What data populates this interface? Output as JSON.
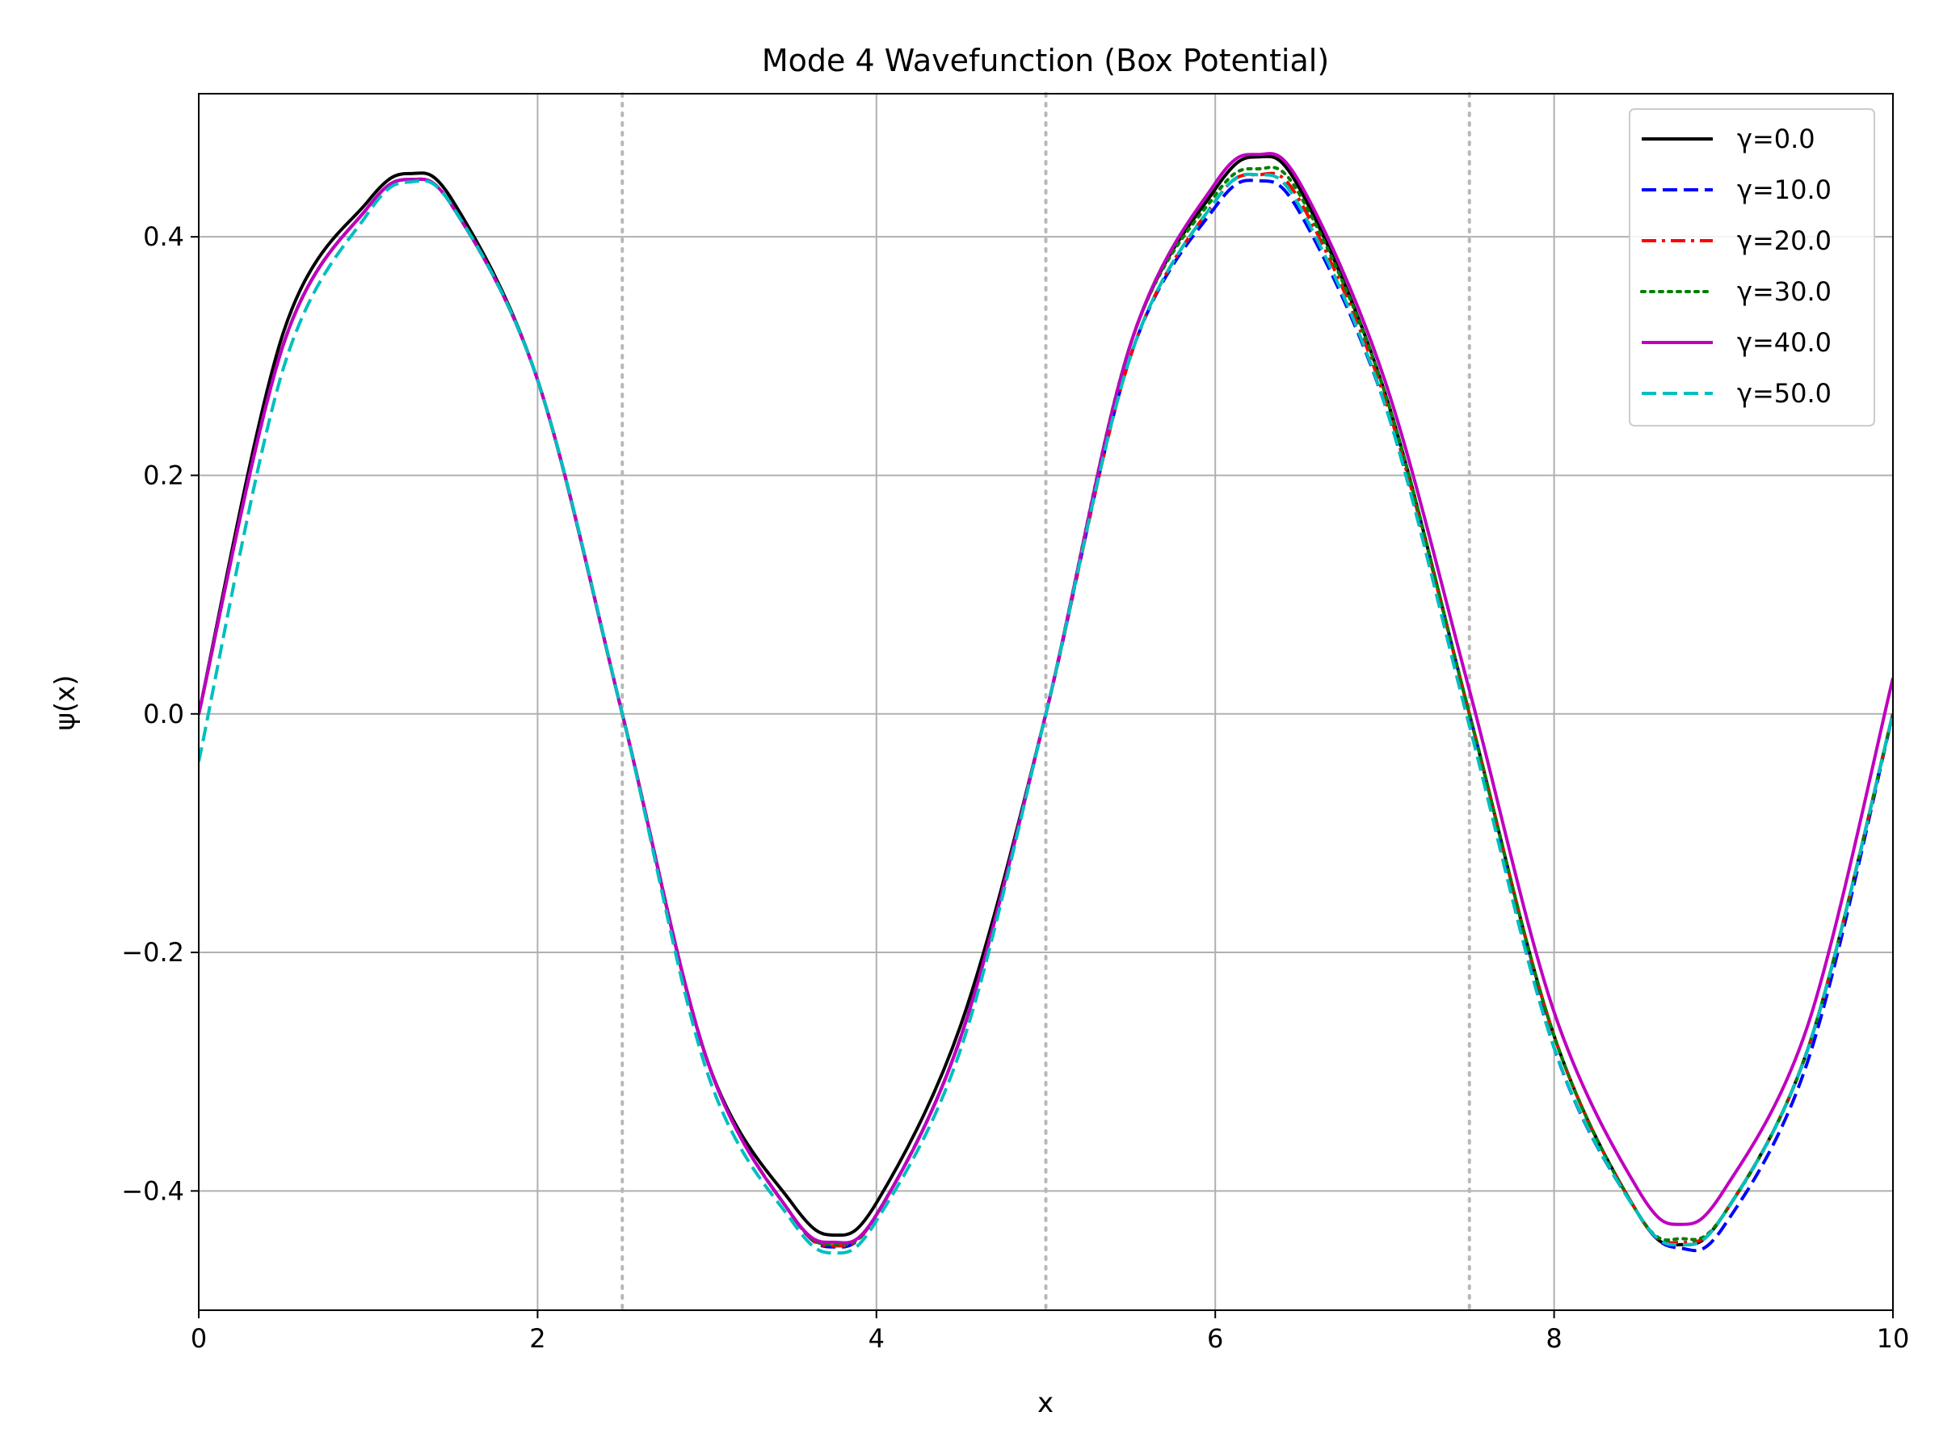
{
  "chart_data": {
    "type": "line",
    "title": "Mode 4 Wavefunction (Box Potential)",
    "xlabel": "x",
    "ylabel": "ψ(x)",
    "xlim": [
      0,
      10
    ],
    "ylim": [
      -0.5,
      0.52
    ],
    "xticks": [
      0,
      2,
      4,
      6,
      8,
      10
    ],
    "xtick_labels": [
      "0",
      "2",
      "4",
      "6",
      "8",
      "10"
    ],
    "yticks": [
      -0.4,
      -0.2,
      0.0,
      0.2,
      0.4
    ],
    "ytick_labels": [
      "−0.4",
      "−0.2",
      "0.0",
      "0.2",
      "0.4"
    ],
    "grid": true,
    "vertical_markers": [
      2.5,
      5.0,
      7.5
    ],
    "legend_position": "top-right",
    "series": [
      {
        "name": "γ=0.0",
        "color": "#000000",
        "style": "solid",
        "x": [
          0,
          0.5,
          1.0,
          1.25,
          1.5,
          2.0,
          2.5,
          3.0,
          3.5,
          3.75,
          4.0,
          4.5,
          5.0,
          5.5,
          6.0,
          6.25,
          6.5,
          7.0,
          7.5,
          8.0,
          8.5,
          8.75,
          9.0,
          9.5,
          10.0
        ],
        "y": [
          0.0,
          0.32,
          0.43,
          0.453,
          0.43,
          0.28,
          0.0,
          -0.29,
          -0.41,
          -0.437,
          -0.41,
          -0.26,
          0.0,
          0.31,
          0.44,
          0.467,
          0.44,
          0.27,
          0.0,
          -0.27,
          -0.42,
          -0.445,
          -0.42,
          -0.28,
          0.0
        ]
      },
      {
        "name": "γ=10.0",
        "color": "#0000ff",
        "style": "dashed",
        "x": [
          0,
          0.5,
          1.0,
          1.25,
          1.5,
          2.0,
          2.5,
          3.0,
          3.5,
          3.75,
          4.0,
          4.5,
          5.0,
          5.5,
          6.0,
          6.25,
          6.5,
          7.0,
          7.5,
          8.0,
          8.5,
          8.75,
          9.0,
          9.5,
          10.0
        ],
        "y": [
          0.0,
          0.31,
          0.425,
          0.448,
          0.425,
          0.28,
          0.0,
          -0.29,
          -0.42,
          -0.447,
          -0.42,
          -0.27,
          0.0,
          0.3,
          0.425,
          0.447,
          0.42,
          0.26,
          0.0,
          -0.28,
          -0.42,
          -0.448,
          -0.43,
          -0.29,
          0.0
        ]
      },
      {
        "name": "γ=20.0",
        "color": "#ff0000",
        "style": "dashdot",
        "x": [
          0,
          0.5,
          1.0,
          1.25,
          1.5,
          2.0,
          2.5,
          3.0,
          3.5,
          3.75,
          4.0,
          4.5,
          5.0,
          5.5,
          6.0,
          6.25,
          6.5,
          7.0,
          7.5,
          8.0,
          8.5,
          8.75,
          9.0,
          9.5,
          10.0
        ],
        "y": [
          0.0,
          0.31,
          0.425,
          0.448,
          0.425,
          0.28,
          0.0,
          -0.29,
          -0.42,
          -0.446,
          -0.42,
          -0.27,
          0.0,
          0.3,
          0.43,
          0.452,
          0.43,
          0.265,
          0.0,
          -0.27,
          -0.42,
          -0.443,
          -0.42,
          -0.28,
          0.0
        ]
      },
      {
        "name": "γ=30.0",
        "color": "#008000",
        "style": "dotted",
        "x": [
          0,
          0.5,
          1.0,
          1.25,
          1.5,
          2.0,
          2.5,
          3.0,
          3.5,
          3.75,
          4.0,
          4.5,
          5.0,
          5.5,
          6.0,
          6.25,
          6.5,
          7.0,
          7.5,
          8.0,
          8.5,
          8.75,
          9.0,
          9.5,
          10.0
        ],
        "y": [
          0.0,
          0.31,
          0.425,
          0.448,
          0.425,
          0.28,
          0.0,
          -0.29,
          -0.42,
          -0.445,
          -0.42,
          -0.27,
          0.0,
          0.31,
          0.435,
          0.457,
          0.435,
          0.27,
          0.0,
          -0.27,
          -0.42,
          -0.44,
          -0.42,
          -0.28,
          0.0
        ]
      },
      {
        "name": "γ=40.0",
        "color": "#bf00bf",
        "style": "solid",
        "x": [
          0,
          0.5,
          1.0,
          1.25,
          1.5,
          2.0,
          2.5,
          3.0,
          3.5,
          3.75,
          4.0,
          4.5,
          5.0,
          5.5,
          6.0,
          6.25,
          6.5,
          7.0,
          7.5,
          8.0,
          8.5,
          8.75,
          9.0,
          9.5,
          10.0
        ],
        "y": [
          0.0,
          0.31,
          0.425,
          0.448,
          0.425,
          0.28,
          0.0,
          -0.29,
          -0.42,
          -0.443,
          -0.42,
          -0.27,
          0.0,
          0.31,
          0.445,
          0.469,
          0.445,
          0.28,
          0.02,
          -0.25,
          -0.4,
          -0.428,
          -0.4,
          -0.26,
          0.03
        ]
      },
      {
        "name": "γ=50.0",
        "color": "#00bfbf",
        "style": "dashed",
        "x": [
          0,
          0.5,
          1.0,
          1.25,
          1.5,
          2.0,
          2.5,
          3.0,
          3.5,
          3.75,
          4.0,
          4.5,
          5.0,
          5.5,
          6.0,
          6.25,
          6.5,
          7.0,
          7.5,
          8.0,
          8.5,
          8.75,
          9.0,
          9.5,
          10.0
        ],
        "y": [
          -0.04,
          0.29,
          0.42,
          0.446,
          0.425,
          0.28,
          0.0,
          -0.3,
          -0.425,
          -0.452,
          -0.425,
          -0.28,
          0.0,
          0.3,
          0.43,
          0.452,
          0.425,
          0.26,
          -0.01,
          -0.28,
          -0.42,
          -0.445,
          -0.42,
          -0.28,
          0.0
        ]
      }
    ]
  }
}
